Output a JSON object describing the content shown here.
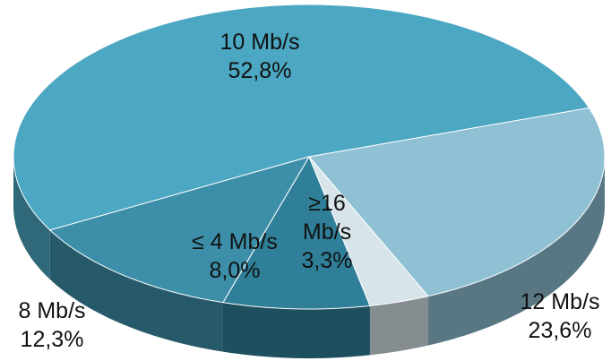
{
  "chart_data": {
    "type": "pie",
    "style": "3d",
    "title": "",
    "categories": [
      "10 Mb/s",
      "12 Mb/s",
      "≥16 Mb/s",
      "≤ 4 Mb/s",
      "8 Mb/s"
    ],
    "values": [
      52.8,
      23.6,
      3.3,
      8.0,
      12.3
    ],
    "value_labels": [
      "52,8%",
      "23,6%",
      "3,3%",
      "8,0%",
      "12,3%"
    ],
    "colors": [
      "#4BA7C2",
      "#8FC0D3",
      "#D7E4EA",
      "#2F7F98",
      "#3D8FA9"
    ]
  }
}
